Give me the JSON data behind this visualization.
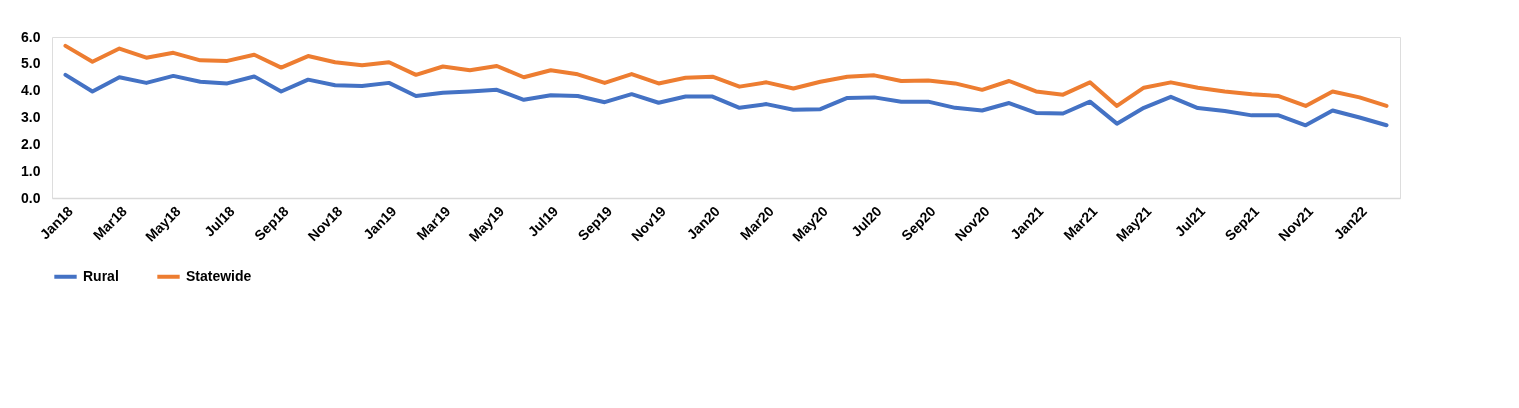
{
  "chart_data": {
    "type": "line",
    "categories": [
      "Jan18",
      null,
      "Mar18",
      null,
      "May18",
      null,
      "Jul18",
      null,
      "Sep18",
      null,
      "Nov18",
      null,
      "Jan19",
      null,
      "Mar19",
      null,
      "May19",
      null,
      "Jul19",
      null,
      "Sep19",
      null,
      "Nov19",
      null,
      "Jan20",
      null,
      "Mar20",
      null,
      "May20",
      null,
      "Jul20",
      null,
      "Sep20",
      null,
      "Nov20",
      null,
      "Jan21",
      null,
      "Mar21",
      null,
      "May21",
      null,
      "Jul21",
      null,
      "Sep21",
      null,
      "Nov21",
      null,
      "Jan22",
      null
    ],
    "series": [
      {
        "name": "Rural",
        "color": "#4472c4",
        "values": [
          4.59,
          3.97,
          4.5,
          4.29,
          4.55,
          4.33,
          4.27,
          4.53,
          3.97,
          4.41,
          4.2,
          4.17,
          4.29,
          3.8,
          3.92,
          3.97,
          4.03,
          3.66,
          3.83,
          3.8,
          3.57,
          3.87,
          3.55,
          3.78,
          3.78,
          3.36,
          3.5,
          3.29,
          3.31,
          3.73,
          3.75,
          3.59,
          3.59,
          3.36,
          3.26,
          3.54,
          3.17,
          3.15,
          3.59,
          2.77,
          3.36,
          3.77,
          3.35,
          3.24,
          3.08,
          3.08,
          2.71,
          3.26,
          3.0,
          2.71
        ]
      },
      {
        "name": "Statewide",
        "color": "#ed7d31",
        "values": [
          5.67,
          5.08,
          5.57,
          5.23,
          5.41,
          5.13,
          5.11,
          5.34,
          4.86,
          5.29,
          5.06,
          4.95,
          5.06,
          4.59,
          4.9,
          4.76,
          4.92,
          4.5,
          4.76,
          4.61,
          4.29,
          4.62,
          4.27,
          4.48,
          4.52,
          4.15,
          4.31,
          4.08,
          4.33,
          4.52,
          4.57,
          4.36,
          4.38,
          4.27,
          4.03,
          4.36,
          3.97,
          3.85,
          4.31,
          3.43,
          4.11,
          4.31,
          4.11,
          3.97,
          3.87,
          3.8,
          3.43,
          3.97,
          3.75,
          3.43
        ]
      }
    ],
    "ylim": [
      0,
      6
    ],
    "yticks": [
      {
        "value": 0,
        "label": "0.0"
      },
      {
        "value": 1,
        "label": "1.0"
      },
      {
        "value": 2,
        "label": "2.0"
      },
      {
        "value": 3,
        "label": "3.0"
      },
      {
        "value": 4,
        "label": "4.0"
      },
      {
        "value": 5,
        "label": "5.0"
      },
      {
        "value": 6,
        "label": "6.0"
      }
    ],
    "grid": false,
    "legend": "bottom",
    "marker": "none",
    "line_style": "solid"
  }
}
